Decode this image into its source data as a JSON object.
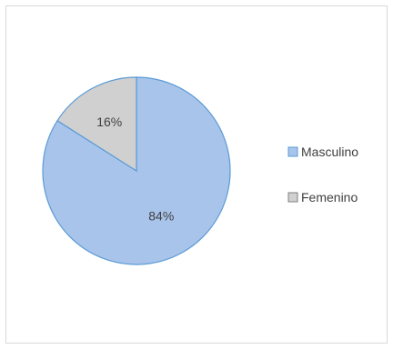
{
  "chart_data": {
    "type": "pie",
    "categories": [
      "Masculino",
      "Femenino"
    ],
    "values": [
      84,
      16
    ],
    "data_labels": [
      "84%",
      "16%"
    ],
    "colors": [
      "#a9c4eb",
      "#d0d0d0"
    ],
    "stroke_color": "#5b9bd5",
    "legend": {
      "position": "right",
      "entries": [
        "Masculino",
        "Femenino"
      ]
    },
    "title": ""
  }
}
